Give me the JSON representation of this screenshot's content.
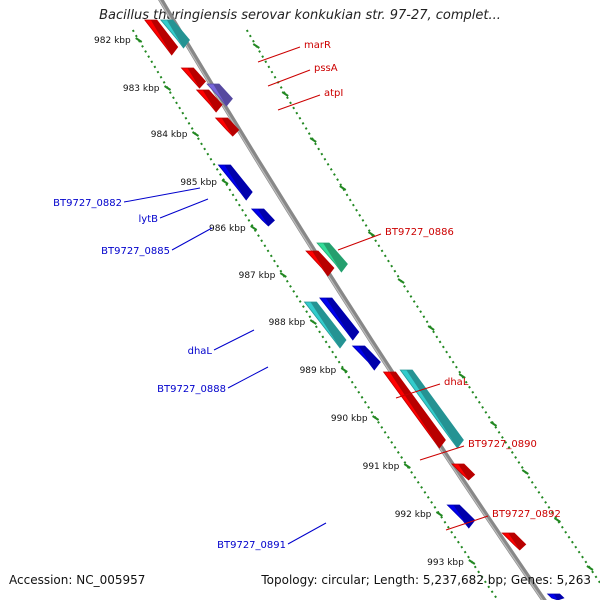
{
  "title": "Bacillus thuringiensis serovar konkukian str. 97-27, complet...",
  "accession": "Accession: NC_005957",
  "topology": "Topology: circular; Length: 5,237,682 bp; Genes: 5,263",
  "kbp_labels": [
    "982 kbp",
    "983 kbp",
    "984 kbp",
    "985 kbp",
    "986 kbp",
    "987 kbp",
    "988 kbp",
    "989 kbp",
    "990 kbp",
    "991 kbp",
    "992 kbp",
    "993 kbp"
  ],
  "forward_gene_labels": [
    "marR",
    "pssA",
    "atpI",
    "BT9727_0886",
    "dhaL",
    "BT9727_0890",
    "BT9727_0892"
  ],
  "reverse_gene_labels": [
    "BT9727_0882",
    "lytB",
    "BT9727_0885",
    "dhaL",
    "BT9727_0888",
    "BT9727_0891"
  ],
  "colors": {
    "forward_label": "#cc0000",
    "reverse_label": "#0000cc",
    "gene_red": "#ff0000",
    "gene_teal": "#33cccc",
    "gene_blue": "#0000ee",
    "gene_purple": "#7766dd",
    "gene_green": "#33dd99",
    "backbone": "#888888",
    "tick_green": "#228822"
  }
}
